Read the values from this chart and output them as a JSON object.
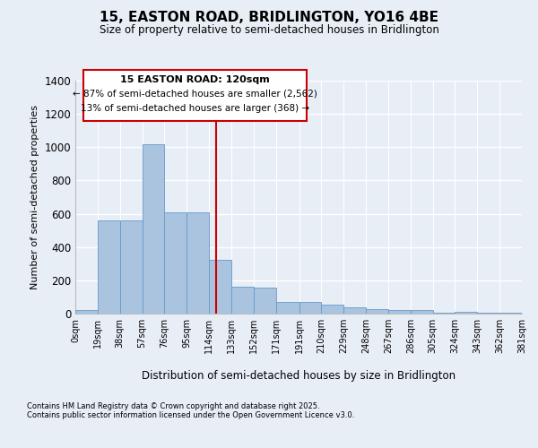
{
  "title": "15, EASTON ROAD, BRIDLINGTON, YO16 4BE",
  "subtitle": "Size of property relative to semi-detached houses in Bridlington",
  "xlabel": "Distribution of semi-detached houses by size in Bridlington",
  "ylabel": "Number of semi-detached properties",
  "footnote1": "Contains HM Land Registry data © Crown copyright and database right 2025.",
  "footnote2": "Contains public sector information licensed under the Open Government Licence v3.0.",
  "annotation_title": "15 EASTON ROAD: 120sqm",
  "annotation_line1": "← 87% of semi-detached houses are smaller (2,562)",
  "annotation_line2": "13% of semi-detached houses are larger (368) →",
  "property_size": 120,
  "bin_edges": [
    0,
    19,
    38,
    57,
    76,
    95,
    114,
    133,
    152,
    171,
    191,
    210,
    229,
    248,
    267,
    286,
    305,
    324,
    343,
    362,
    381
  ],
  "bar_heights": [
    20,
    560,
    560,
    1020,
    610,
    610,
    325,
    160,
    155,
    70,
    70,
    55,
    40,
    25,
    20,
    20,
    5,
    10,
    5,
    3
  ],
  "bar_color": "#aac4df",
  "bar_edge_color": "#6699cc",
  "vline_color": "#cc0000",
  "vline_x": 120,
  "ylim": [
    0,
    1400
  ],
  "yticks": [
    0,
    200,
    400,
    600,
    800,
    1000,
    1200,
    1400
  ],
  "background_color": "#e8eef6",
  "plot_background": "#e8eef6",
  "grid_color": "#ffffff",
  "annotation_box_color": "#cc0000",
  "tick_labels": [
    "0sqm",
    "19sqm",
    "38sqm",
    "57sqm",
    "76sqm",
    "95sqm",
    "114sqm",
    "133sqm",
    "152sqm",
    "171sqm",
    "191sqm",
    "210sqm",
    "229sqm",
    "248sqm",
    "267sqm",
    "286sqm",
    "305sqm",
    "324sqm",
    "343sqm",
    "362sqm",
    "381sqm"
  ]
}
